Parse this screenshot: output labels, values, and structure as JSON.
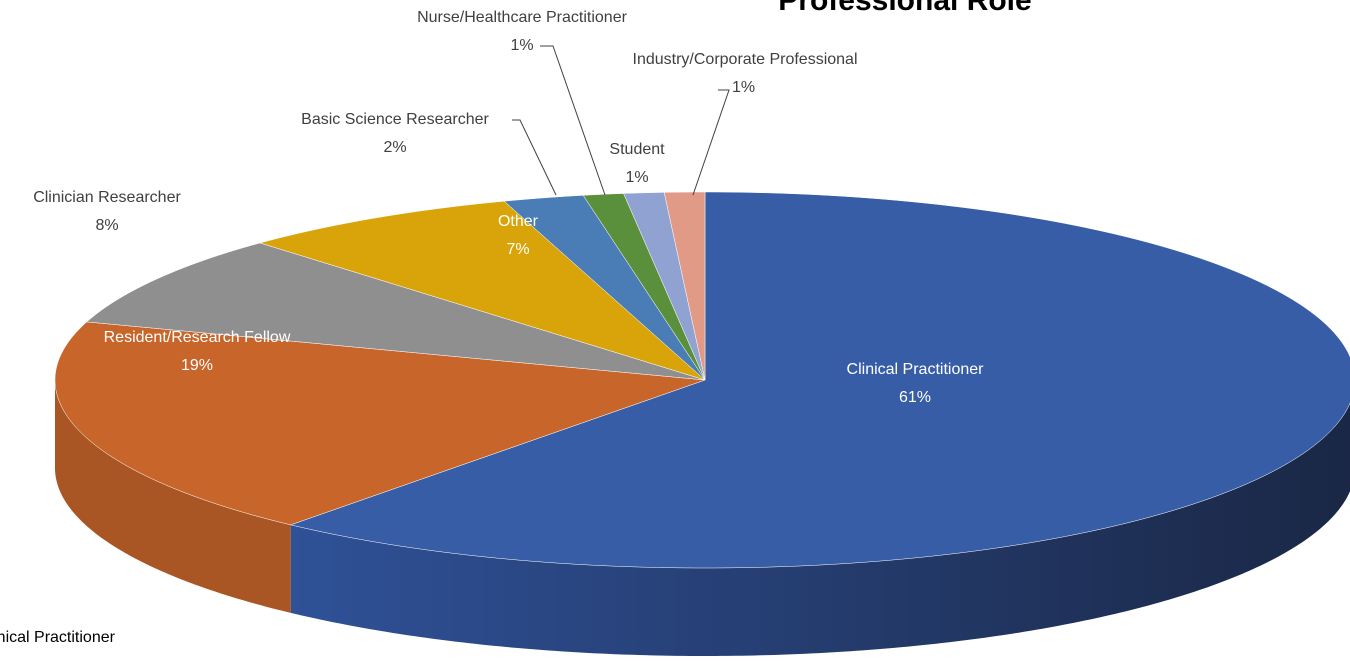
{
  "chart_data": {
    "type": "pie",
    "title": "Professional Role",
    "categories": [
      "Clinical Practitioner",
      "Resident/Research Fellow",
      "Clinician Researcher",
      "Other",
      "Basic Science Researcher",
      "Nurse/Healthcare Practitioner",
      "Student",
      "Industry/Corporate Professional"
    ],
    "values": [
      61,
      19,
      8,
      7,
      2,
      1,
      1,
      1
    ],
    "value_labels": [
      "61%",
      "19%",
      "8%",
      "7%",
      "2%",
      "1%",
      "1%",
      "1%"
    ],
    "colors": [
      "#375da6",
      "#c8652a",
      "#8f8f8f",
      "#d8a40a",
      "#4a7db5",
      "#5a8f3c",
      "#8fa2d2",
      "#e09a86"
    ]
  }
}
